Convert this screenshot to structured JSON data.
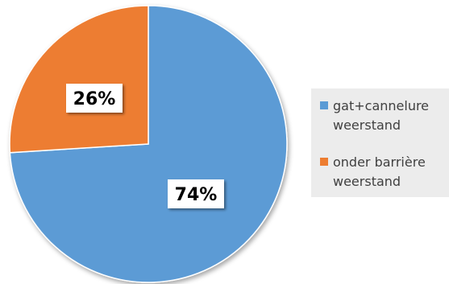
{
  "chart_data": {
    "type": "pie",
    "categories": [
      "gat+cannelure weerstand",
      "onder barrière weerstand"
    ],
    "values": [
      74,
      26
    ],
    "data_labels": [
      "74%",
      "26%"
    ],
    "colors": [
      "#5B9BD5",
      "#ED7D31"
    ],
    "start_angle_deg": 0,
    "direction": "clockwise",
    "legend_position": "right",
    "legend": [
      {
        "lines": [
          "gat+cannelure",
          "weerstand"
        ],
        "color": "#5B9BD5"
      },
      {
        "lines": [
          "onder barrière",
          "weerstand"
        ],
        "color": "#ED7D31"
      }
    ],
    "title": ""
  }
}
